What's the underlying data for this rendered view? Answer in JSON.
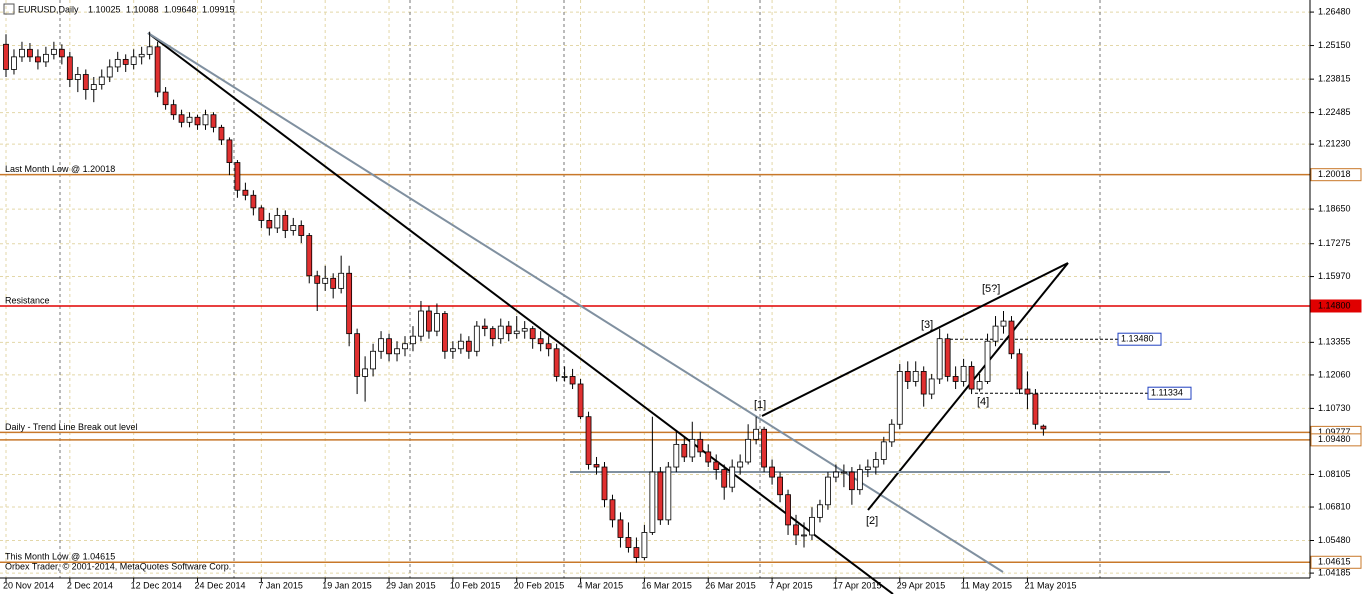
{
  "chart_data": {
    "type": "candlestick",
    "header": {
      "symbol": "EURUSD,Daily",
      "ohlc": [
        1.10025,
        1.10088,
        1.09648,
        1.09915
      ]
    },
    "copyright": "Orbex Trader, © 2001-2014, MetaQuotes Software Corp.",
    "bull_color": "#ffffff",
    "bear_color": "#e03030",
    "grid": true,
    "ylim": [
      1.0399,
      1.2696
    ],
    "yticks": [
      {
        "value": 1.2648,
        "label": "1.26480"
      },
      {
        "value": 1.2515,
        "label": "1.25150"
      },
      1.23815,
      1.22485,
      {
        "value": 1.2123,
        "label": "1.21230"
      },
      {
        "value": 1.1865,
        "label": "1.18650"
      },
      1.17275,
      {
        "value": 1.1597,
        "label": "1.15970"
      },
      1.13355,
      {
        "value": 1.1206,
        "label": "1.12060"
      },
      {
        "value": 1.1073,
        "label": "1.10730"
      },
      1.08105,
      {
        "value": 1.0681,
        "label": "1.06810"
      },
      {
        "value": 1.0548,
        "label": "1.05480"
      },
      1.04185
    ],
    "levels": [
      {
        "name": "Last Month Low @ 1.20018",
        "value": 1.20018,
        "color": "#c8782a"
      },
      {
        "name": "Resistance",
        "value": 1.148,
        "value_label": "1.14800",
        "color": "#e00000"
      },
      {
        "value": 1.1348,
        "value_label": "1.13480",
        "color": "#000000",
        "dashed": true
      },
      {
        "value": 1.11334,
        "color": "#000000",
        "dashed": true
      },
      {
        "name": "Daily - Trend Line Break out level",
        "value": 1.09777,
        "color": "#c8782a"
      },
      {
        "value": 1.0948,
        "value_label": "1.09480",
        "color": "#c8782a"
      },
      {
        "name": "This Month Low @ 1.04615",
        "value": 1.04615,
        "color": "#c8782a"
      }
    ],
    "wave_labels": [
      "[1]",
      "[2]",
      "[3]",
      "[4]",
      "[5?]"
    ],
    "categories": [
      "20 Nov 2014",
      null,
      null,
      null,
      null,
      null,
      null,
      null,
      "2 Dec 2014",
      null,
      null,
      null,
      null,
      null,
      null,
      null,
      "12 Dec 2014",
      null,
      null,
      null,
      null,
      null,
      null,
      null,
      "24 Dec 2014",
      null,
      null,
      null,
      null,
      null,
      null,
      null,
      "7 Jan 2015",
      null,
      null,
      null,
      null,
      null,
      null,
      null,
      "19 Jan 2015",
      null,
      null,
      null,
      null,
      null,
      null,
      null,
      "29 Jan 2015",
      null,
      null,
      null,
      null,
      null,
      null,
      null,
      "10 Feb 2015",
      null,
      null,
      null,
      null,
      null,
      null,
      null,
      "20 Feb 2015",
      null,
      null,
      null,
      null,
      null,
      null,
      null,
      "4 Mar 2015",
      null,
      null,
      null,
      null,
      null,
      null,
      null,
      "16 Mar 2015",
      null,
      null,
      null,
      null,
      null,
      null,
      null,
      "26 Mar 2015",
      null,
      null,
      null,
      null,
      null,
      null,
      null,
      "7 Apr 2015",
      null,
      null,
      null,
      null,
      null,
      null,
      null,
      "17 Apr 2015",
      null,
      null,
      null,
      null,
      null,
      null,
      null,
      "29 Apr 2015",
      null,
      null,
      null,
      null,
      null,
      null,
      null,
      "11 May 2015",
      null,
      null,
      null,
      null,
      null,
      null,
      null,
      "21 May 2015",
      null,
      null
    ],
    "candles": [
      [
        1.252,
        1.256,
        1.239,
        1.242
      ],
      [
        1.242,
        1.25,
        1.24,
        1.247
      ],
      [
        1.247,
        1.253,
        1.245,
        1.25
      ],
      [
        1.25,
        1.2525,
        1.245,
        1.247
      ],
      [
        1.247,
        1.25,
        1.242,
        1.245
      ],
      [
        1.245,
        1.251,
        1.243,
        1.248
      ],
      [
        1.248,
        1.253,
        1.246,
        1.25
      ],
      [
        1.25,
        1.252,
        1.244,
        1.247
      ],
      [
        1.247,
        1.249,
        1.235,
        1.238
      ],
      [
        1.238,
        1.243,
        1.233,
        1.24
      ],
      [
        1.24,
        1.242,
        1.23,
        1.234
      ],
      [
        1.234,
        1.239,
        1.229,
        1.236
      ],
      [
        1.236,
        1.242,
        1.234,
        1.239
      ],
      [
        1.239,
        1.246,
        1.237,
        1.243
      ],
      [
        1.243,
        1.249,
        1.241,
        1.246
      ],
      [
        1.246,
        1.248,
        1.241,
        1.244
      ],
      [
        1.244,
        1.25,
        1.242,
        1.247
      ],
      [
        1.247,
        1.251,
        1.244,
        1.248
      ],
      [
        1.248,
        1.257,
        1.246,
        1.251
      ],
      [
        1.251,
        1.253,
        1.231,
        1.233
      ],
      [
        1.233,
        1.235,
        1.226,
        1.228
      ],
      [
        1.228,
        1.23,
        1.222,
        1.224
      ],
      [
        1.224,
        1.226,
        1.219,
        1.221
      ],
      [
        1.221,
        1.225,
        1.219,
        1.223
      ],
      [
        1.223,
        1.224,
        1.218,
        1.22
      ],
      [
        1.22,
        1.226,
        1.218,
        1.224
      ],
      [
        1.224,
        1.225,
        1.217,
        1.219
      ],
      [
        1.219,
        1.22,
        1.212,
        1.214
      ],
      [
        1.214,
        1.215,
        1.2,
        1.205
      ],
      [
        1.205,
        1.206,
        1.191,
        1.194
      ],
      [
        1.194,
        1.197,
        1.19,
        1.192
      ],
      [
        1.192,
        1.194,
        1.184,
        1.187
      ],
      [
        1.187,
        1.188,
        1.179,
        1.182
      ],
      [
        1.182,
        1.185,
        1.176,
        1.179
      ],
      [
        1.179,
        1.187,
        1.177,
        1.184
      ],
      [
        1.184,
        1.186,
        1.175,
        1.178
      ],
      [
        1.178,
        1.183,
        1.176,
        1.18
      ],
      [
        1.18,
        1.182,
        1.173,
        1.176
      ],
      [
        1.176,
        1.177,
        1.157,
        1.16
      ],
      [
        1.16,
        1.162,
        1.146,
        1.157
      ],
      [
        1.157,
        1.164,
        1.154,
        1.159
      ],
      [
        1.159,
        1.161,
        1.151,
        1.155
      ],
      [
        1.155,
        1.168,
        1.153,
        1.161
      ],
      [
        1.161,
        1.164,
        1.132,
        1.137
      ],
      [
        1.137,
        1.139,
        1.113,
        1.12
      ],
      [
        1.12,
        1.128,
        1.11,
        1.123
      ],
      [
        1.123,
        1.133,
        1.12,
        1.13
      ],
      [
        1.13,
        1.138,
        1.127,
        1.135
      ],
      [
        1.135,
        1.137,
        1.126,
        1.129
      ],
      [
        1.129,
        1.134,
        1.126,
        1.131
      ],
      [
        1.131,
        1.136,
        1.128,
        1.133
      ],
      [
        1.133,
        1.14,
        1.13,
        1.136
      ],
      [
        1.136,
        1.15,
        1.134,
        1.146
      ],
      [
        1.146,
        1.148,
        1.135,
        1.138
      ],
      [
        1.138,
        1.149,
        1.136,
        1.145
      ],
      [
        1.145,
        1.146,
        1.127,
        1.13
      ],
      [
        1.13,
        1.134,
        1.127,
        1.131
      ],
      [
        1.131,
        1.137,
        1.129,
        1.134
      ],
      [
        1.134,
        1.136,
        1.127,
        1.13
      ],
      [
        1.13,
        1.142,
        1.128,
        1.14
      ],
      [
        1.14,
        1.143,
        1.136,
        1.139
      ],
      [
        1.139,
        1.14,
        1.132,
        1.135
      ],
      [
        1.135,
        1.143,
        1.133,
        1.14
      ],
      [
        1.14,
        1.142,
        1.134,
        1.137
      ],
      [
        1.137,
        1.144,
        1.135,
        1.138
      ],
      [
        1.138,
        1.142,
        1.135,
        1.139
      ],
      [
        1.139,
        1.14,
        1.131,
        1.135
      ],
      [
        1.135,
        1.138,
        1.13,
        1.133
      ],
      [
        1.133,
        1.136,
        1.128,
        1.131
      ],
      [
        1.131,
        1.133,
        1.118,
        1.12
      ],
      [
        1.12,
        1.124,
        1.118,
        1.12
      ],
      [
        1.12,
        1.123,
        1.115,
        1.117
      ],
      [
        1.117,
        1.119,
        1.103,
        1.104
      ],
      [
        1.104,
        1.106,
        1.083,
        1.085
      ],
      [
        1.085,
        1.088,
        1.081,
        1.084
      ],
      [
        1.084,
        1.086,
        1.068,
        1.071
      ],
      [
        1.071,
        1.073,
        1.06,
        1.063
      ],
      [
        1.063,
        1.066,
        1.052,
        1.056
      ],
      [
        1.056,
        1.062,
        1.05,
        1.052
      ],
      [
        1.052,
        1.056,
        1.046,
        1.048
      ],
      [
        1.048,
        1.061,
        1.047,
        1.058
      ],
      [
        1.058,
        1.104,
        1.057,
        1.082
      ],
      [
        1.082,
        1.084,
        1.061,
        1.063
      ],
      [
        1.063,
        1.086,
        1.061,
        1.084
      ],
      [
        1.084,
        1.098,
        1.082,
        1.093
      ],
      [
        1.093,
        1.096,
        1.086,
        1.088
      ],
      [
        1.088,
        1.102,
        1.086,
        1.095
      ],
      [
        1.095,
        1.098,
        1.088,
        1.09
      ],
      [
        1.09,
        1.093,
        1.084,
        1.086
      ],
      [
        1.086,
        1.089,
        1.079,
        1.083
      ],
      [
        1.083,
        1.085,
        1.071,
        1.076
      ],
      [
        1.076,
        1.087,
        1.074,
        1.084
      ],
      [
        1.084,
        1.089,
        1.081,
        1.086
      ],
      [
        1.086,
        1.101,
        1.085,
        1.095
      ],
      [
        1.095,
        1.104,
        1.093,
        1.099
      ],
      [
        1.099,
        1.1,
        1.082,
        1.084
      ],
      [
        1.084,
        1.087,
        1.077,
        1.08
      ],
      [
        1.08,
        1.082,
        1.07,
        1.073
      ],
      [
        1.073,
        1.075,
        1.057,
        1.061
      ],
      [
        1.061,
        1.065,
        1.053,
        1.057
      ],
      [
        1.057,
        1.062,
        1.052,
        1.057
      ],
      [
        1.057,
        1.068,
        1.055,
        1.064
      ],
      [
        1.064,
        1.071,
        1.062,
        1.069
      ],
      [
        1.069,
        1.082,
        1.067,
        1.08
      ],
      [
        1.08,
        1.085,
        1.078,
        1.082
      ],
      [
        1.082,
        1.085,
        1.076,
        1.082
      ],
      [
        1.082,
        1.084,
        1.069,
        1.075
      ],
      [
        1.075,
        1.085,
        1.073,
        1.083
      ],
      [
        1.083,
        1.087,
        1.08,
        1.084
      ],
      [
        1.084,
        1.09,
        1.081,
        1.087
      ],
      [
        1.087,
        1.096,
        1.085,
        1.094
      ],
      [
        1.094,
        1.103,
        1.092,
        1.101
      ],
      [
        1.101,
        1.125,
        1.099,
        1.122
      ],
      [
        1.122,
        1.126,
        1.115,
        1.118
      ],
      [
        1.118,
        1.126,
        1.116,
        1.122
      ],
      [
        1.122,
        1.124,
        1.108,
        1.113
      ],
      [
        1.113,
        1.121,
        1.111,
        1.119
      ],
      [
        1.119,
        1.139,
        1.117,
        1.135
      ],
      [
        1.135,
        1.137,
        1.118,
        1.12
      ],
      [
        1.12,
        1.124,
        1.115,
        1.118
      ],
      [
        1.118,
        1.127,
        1.116,
        1.124
      ],
      [
        1.124,
        1.126,
        1.113,
        1.115
      ],
      [
        1.115,
        1.121,
        1.114,
        1.118
      ],
      [
        1.118,
        1.137,
        1.117,
        1.134
      ],
      [
        1.134,
        1.144,
        1.132,
        1.14
      ],
      [
        1.14,
        1.146,
        1.137,
        1.142
      ],
      [
        1.142,
        1.144,
        1.127,
        1.129
      ],
      [
        1.129,
        1.131,
        1.113,
        1.115
      ],
      [
        1.115,
        1.122,
        1.107,
        1.113
      ],
      [
        1.113,
        1.115,
        1.099,
        1.101
      ],
      [
        1.10025,
        1.10088,
        1.09648,
        1.09915
      ]
    ]
  }
}
